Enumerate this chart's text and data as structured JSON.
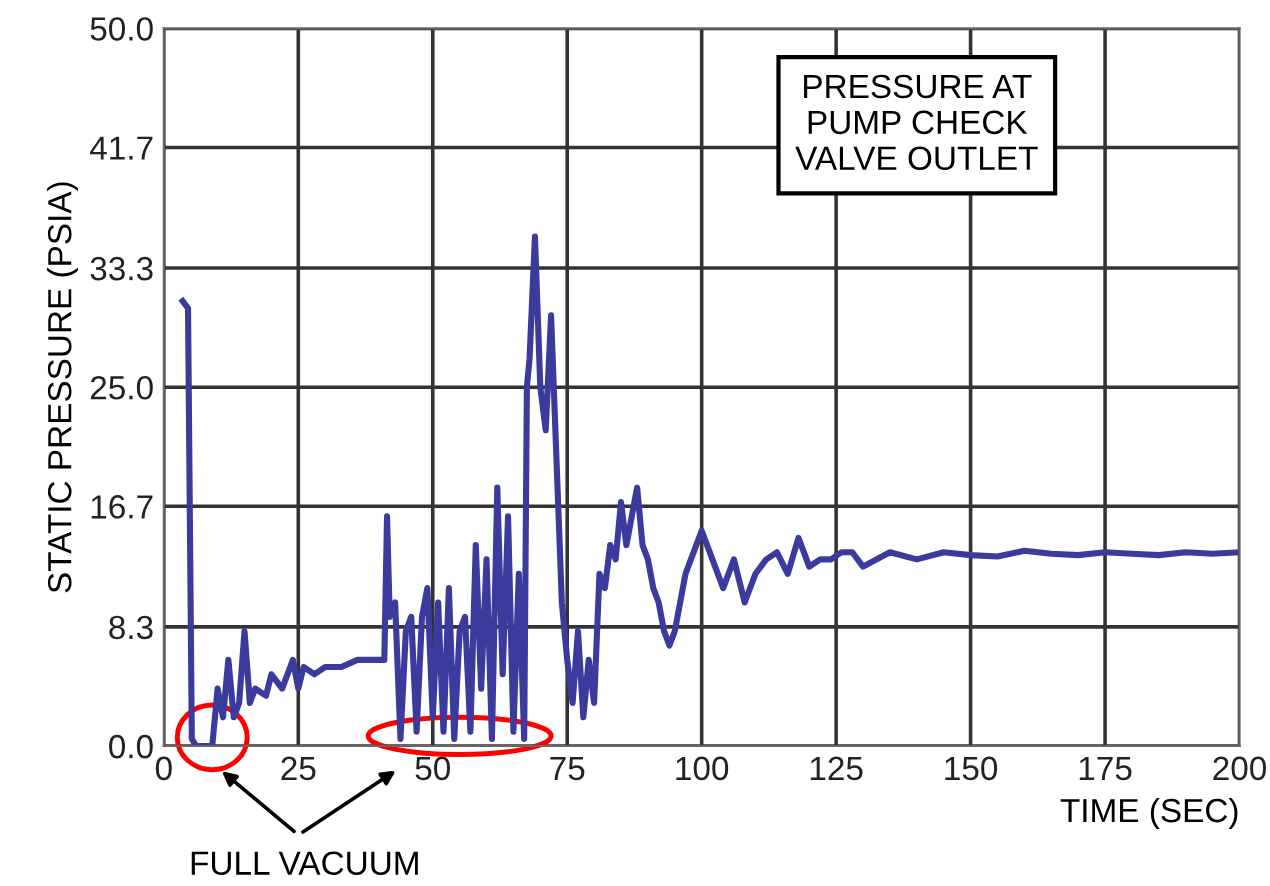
{
  "chart_data": {
    "type": "line",
    "xlabel": "TIME (SEC)",
    "ylabel": "STATIC PRESSURE (PSIA)",
    "annotations": [
      "PRESSURE AT\nPUMP CHECK\nVALVE OUTLET",
      "FULL VACUUM"
    ],
    "xlim": [
      0,
      200
    ],
    "xticks": [
      0,
      25,
      50,
      75,
      100,
      125,
      150,
      175,
      200
    ],
    "ylim": [
      0,
      50
    ],
    "yticks": [
      {
        "value": 0,
        "label": "0.0"
      },
      {
        "value": 8.3,
        "label": "8.3"
      },
      {
        "value": 16.7,
        "label": "16.7"
      },
      {
        "value": 25,
        "label": "25.0"
      },
      {
        "value": 33.3,
        "label": "33.3"
      },
      {
        "value": 41.7,
        "label": "41.7"
      },
      {
        "value": 50,
        "label": "50.0"
      }
    ],
    "grid": true,
    "legend": false,
    "line_style": "solid",
    "series": [
      {
        "color": "#3b3b9e",
        "x": [
          3.5,
          4.5,
          5.2,
          6,
          9,
          10,
          11,
          12,
          13,
          14,
          15,
          16,
          17,
          19,
          20,
          22,
          24,
          25,
          26,
          28,
          30,
          33,
          36,
          40,
          41,
          41.5,
          42,
          43,
          44,
          45,
          46,
          47,
          48,
          49,
          50,
          51,
          52,
          53,
          54,
          55,
          56,
          57,
          58,
          59,
          60,
          61,
          62,
          63,
          64,
          65,
          66,
          67,
          67.5,
          68,
          69,
          70,
          71,
          72,
          73,
          74,
          75,
          76,
          77,
          78,
          79,
          80,
          81,
          82,
          83,
          84,
          85,
          86,
          87,
          88,
          89,
          90,
          91,
          92,
          93,
          94,
          95,
          96,
          97,
          98,
          100,
          102,
          104,
          106,
          108,
          110,
          112,
          114,
          116,
          118,
          120,
          122,
          124,
          126,
          128,
          130,
          135,
          140,
          145,
          150,
          155,
          160,
          165,
          170,
          175,
          180,
          185,
          190,
          195,
          200
        ],
        "values": [
          31,
          30.5,
          0.5,
          0,
          0,
          4,
          2,
          6,
          2,
          3,
          8,
          3,
          4,
          3.5,
          5,
          4,
          6,
          4,
          5.5,
          5,
          5.5,
          5.5,
          6,
          6,
          6,
          16,
          9,
          10,
          0.5,
          8,
          9,
          1,
          9,
          11,
          2,
          10,
          1,
          11,
          0.5,
          8,
          9,
          1,
          14,
          4,
          13,
          0.5,
          18,
          5,
          16,
          1,
          12,
          0.5,
          25,
          27,
          35.5,
          25,
          22,
          30,
          20,
          10,
          6,
          3,
          8,
          2,
          6,
          3,
          12,
          11,
          14,
          13,
          17,
          14,
          16,
          18,
          14,
          13,
          11,
          10,
          8,
          7,
          8,
          10,
          12,
          13,
          15,
          13,
          11,
          13,
          10,
          12,
          13,
          13.5,
          12,
          14.5,
          12.5,
          13,
          13,
          13.5,
          13.5,
          12.5,
          13.5,
          13,
          13.5,
          13.3,
          13.2,
          13.6,
          13.4,
          13.3,
          13.5,
          13.4,
          13.3,
          13.5,
          13.4,
          13.5
        ]
      }
    ]
  }
}
